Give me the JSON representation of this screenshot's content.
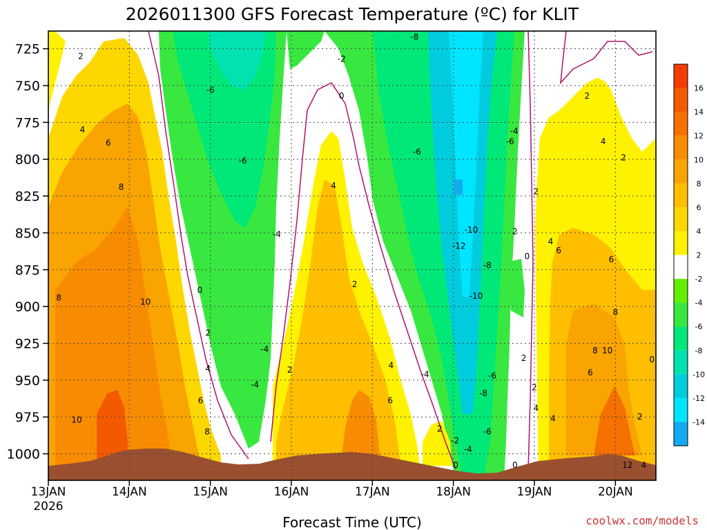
{
  "chart_data": {
    "type": "heatmap",
    "title": "2026011300 GFS Forecast Temperature (ºC) for KLIT",
    "xlabel": "Forecast Time (UTC)",
    "ylabel": "",
    "watermark": "coolwx.com/models",
    "x_ticks": [
      {
        "label": "13JAN",
        "day": 0
      },
      {
        "label": "14JAN",
        "day": 1
      },
      {
        "label": "15JAN",
        "day": 2
      },
      {
        "label": "16JAN",
        "day": 3
      },
      {
        "label": "17JAN",
        "day": 4
      },
      {
        "label": "18JAN",
        "day": 5
      },
      {
        "label": "19JAN",
        "day": 6
      },
      {
        "label": "20JAN",
        "day": 7
      }
    ],
    "x_year_label": "2026",
    "x_range_days": [
      0,
      7.5
    ],
    "y_ticks": [
      725,
      750,
      775,
      800,
      825,
      850,
      875,
      900,
      925,
      950,
      975,
      1000
    ],
    "y_range_hpa": [
      713,
      1018
    ],
    "colorbar": {
      "levels": [
        -16,
        -14,
        -12,
        -10,
        -8,
        -6,
        -4,
        -2,
        2,
        4,
        6,
        8,
        10,
        12,
        14,
        16,
        18
      ],
      "tick_labels": [
        "16",
        "14",
        "12",
        "10",
        "8",
        "6",
        "4",
        "2",
        "-2",
        "-4",
        "-6",
        "-8",
        "-10",
        "-12",
        "-14"
      ],
      "colors": [
        "#14aaf0",
        "#00e5ff",
        "#00ccdd",
        "#00e3b0",
        "#00e877",
        "#38e840",
        "#62f000",
        "#ffffff",
        "#fff200",
        "#ffd700",
        "#ffbe00",
        "#f9a400",
        "#f88c00",
        "#f57000",
        "#f35a00",
        "#f53c00"
      ]
    },
    "ground_color": "#9a5030",
    "zero_contour_color": "#b0106c",
    "temperature_bands": [
      {
        "day_start": 0.0,
        "day_end": 1.0,
        "temp_range": "6 to 12",
        "description": "warm"
      },
      {
        "day_start": 1.3,
        "day_end": 3.0,
        "temp_range": "-8 to -2",
        "description": "cold"
      },
      {
        "day_start": 3.0,
        "day_end": 4.6,
        "temp_range": "2 to 12",
        "description": "warm"
      },
      {
        "day_start": 4.6,
        "day_end": 5.7,
        "temp_range": "-14 to -2",
        "description": "coldest"
      },
      {
        "day_start": 6.0,
        "day_end": 7.5,
        "temp_range": "2 to 12",
        "description": "warm"
      }
    ],
    "contour_labels": [
      {
        "text": "2",
        "day": 0.4,
        "hpa": 730
      },
      {
        "text": "4",
        "day": 0.42,
        "hpa": 780
      },
      {
        "text": "6",
        "day": 0.74,
        "hpa": 789
      },
      {
        "text": "8",
        "day": 0.9,
        "hpa": 819
      },
      {
        "text": "8",
        "day": 0.13,
        "hpa": 894
      },
      {
        "text": "10",
        "day": 1.2,
        "hpa": 897
      },
      {
        "text": "10",
        "day": 0.35,
        "hpa": 977
      },
      {
        "text": "0",
        "day": 1.87,
        "hpa": 889
      },
      {
        "text": "2",
        "day": 1.97,
        "hpa": 918
      },
      {
        "text": "4",
        "day": 1.97,
        "hpa": 942
      },
      {
        "text": "6",
        "day": 1.88,
        "hpa": 964
      },
      {
        "text": "8",
        "day": 1.96,
        "hpa": 985
      },
      {
        "text": "-6",
        "day": 2.0,
        "hpa": 753
      },
      {
        "text": "-6",
        "day": 2.4,
        "hpa": 801
      },
      {
        "text": "-4",
        "day": 2.82,
        "hpa": 851
      },
      {
        "text": "-4",
        "day": 2.67,
        "hpa": 929
      },
      {
        "text": "-4",
        "day": 2.55,
        "hpa": 953
      },
      {
        "text": "2",
        "day": 2.98,
        "hpa": 943
      },
      {
        "text": "0",
        "day": 3.62,
        "hpa": 757
      },
      {
        "text": "-2",
        "day": 3.62,
        "hpa": 732
      },
      {
        "text": "4",
        "day": 3.52,
        "hpa": 818
      },
      {
        "text": "2",
        "day": 3.78,
        "hpa": 885
      },
      {
        "text": "4",
        "day": 4.23,
        "hpa": 940
      },
      {
        "text": "6",
        "day": 4.22,
        "hpa": 964
      },
      {
        "text": "-8",
        "day": 4.52,
        "hpa": 717
      },
      {
        "text": "-6",
        "day": 4.55,
        "hpa": 795
      },
      {
        "text": "-4",
        "day": 4.65,
        "hpa": 946
      },
      {
        "text": "2",
        "day": 4.83,
        "hpa": 983
      },
      {
        "text": "-2",
        "day": 5.02,
        "hpa": 991
      },
      {
        "text": "-4",
        "day": 5.18,
        "hpa": 997
      },
      {
        "text": "0",
        "day": 5.03,
        "hpa": 1024
      },
      {
        "text": "-10",
        "day": 5.22,
        "hpa": 848
      },
      {
        "text": "-12",
        "day": 5.07,
        "hpa": 859
      },
      {
        "text": "-10",
        "day": 5.28,
        "hpa": 893
      },
      {
        "text": "-8",
        "day": 5.42,
        "hpa": 872
      },
      {
        "text": "-6",
        "day": 5.48,
        "hpa": 947
      },
      {
        "text": "-8",
        "day": 5.37,
        "hpa": 959
      },
      {
        "text": "-6",
        "day": 5.42,
        "hpa": 985
      },
      {
        "text": "-4",
        "day": 5.75,
        "hpa": 781
      },
      {
        "text": "-6",
        "day": 5.7,
        "hpa": 788
      },
      {
        "text": "2",
        "day": 5.76,
        "hpa": 849
      },
      {
        "text": "0",
        "day": 5.91,
        "hpa": 866
      },
      {
        "text": "2",
        "day": 5.87,
        "hpa": 935
      },
      {
        "text": "2",
        "day": 6.0,
        "hpa": 955
      },
      {
        "text": "4",
        "day": 6.02,
        "hpa": 969
      },
      {
        "text": "4",
        "day": 6.23,
        "hpa": 976
      },
      {
        "text": "0",
        "day": 5.76,
        "hpa": 1024
      },
      {
        "text": "2",
        "day": 6.02,
        "hpa": 822
      },
      {
        "text": "4",
        "day": 6.2,
        "hpa": 856
      },
      {
        "text": "6",
        "day": 6.3,
        "hpa": 862
      },
      {
        "text": "2",
        "day": 6.65,
        "hpa": 757
      },
      {
        "text": "4",
        "day": 6.85,
        "hpa": 788
      },
      {
        "text": "2",
        "day": 7.1,
        "hpa": 799
      },
      {
        "text": "6",
        "day": 6.95,
        "hpa": 868
      },
      {
        "text": "8",
        "day": 7.0,
        "hpa": 904
      },
      {
        "text": "8",
        "day": 6.75,
        "hpa": 930
      },
      {
        "text": "10",
        "day": 6.9,
        "hpa": 930
      },
      {
        "text": "6",
        "day": 6.69,
        "hpa": 945
      },
      {
        "text": "0",
        "day": 7.45,
        "hpa": 936
      },
      {
        "text": "2",
        "day": 7.3,
        "hpa": 975
      },
      {
        "text": "12",
        "day": 7.15,
        "hpa": 1014
      },
      {
        "text": "4",
        "day": 7.35,
        "hpa": 1014
      }
    ]
  }
}
